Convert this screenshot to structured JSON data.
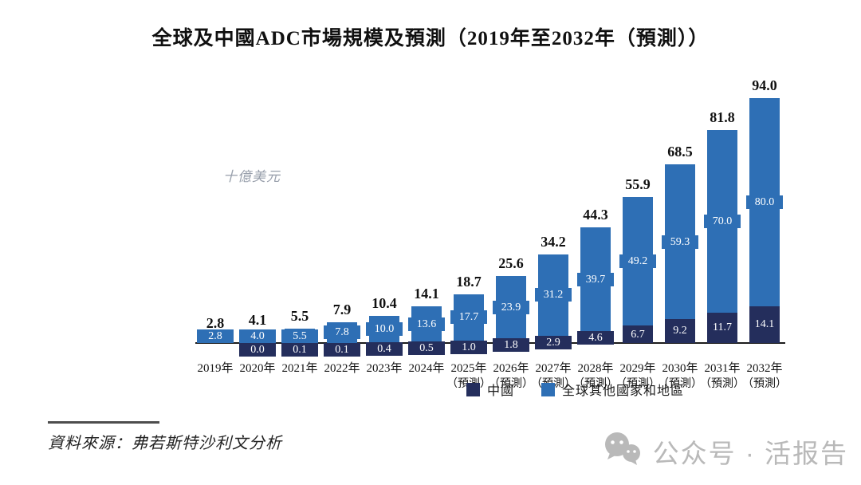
{
  "title": "全球及中國ADC市場規模及預測（2019年至2032年（預測））",
  "y_axis_label": "十億美元",
  "chart_data": {
    "type": "bar",
    "stacked": true,
    "title": "全球及中國ADC市場規模及預測（2019年至2032年（預測））",
    "ylabel": "十億美元",
    "ylim": [
      0,
      94
    ],
    "grid": false,
    "legend_position": "bottom",
    "categories": [
      "2019年",
      "2020年",
      "2021年",
      "2022年",
      "2023年",
      "2024年",
      "2025年",
      "2026年",
      "2027年",
      "2028年",
      "2029年",
      "2030年",
      "2031年",
      "2032年"
    ],
    "forecast_suffix": "（預測）",
    "forecast_from_index": 6,
    "series": [
      {
        "name": "中國",
        "color": "#242e5c",
        "values": [
          0,
          0.0,
          0.1,
          0.1,
          0.4,
          0.5,
          1.0,
          1.8,
          2.9,
          4.6,
          6.7,
          9.2,
          11.7,
          14.1
        ],
        "labels": [
          "",
          "0.0",
          "0.1",
          "0.1",
          "0.4",
          "0.5",
          "1.0",
          "1.8",
          "2.9",
          "4.6",
          "6.7",
          "9.2",
          "11.7",
          "14.1"
        ]
      },
      {
        "name": "全球其他國家和地區",
        "color": "#2e6fb5",
        "values": [
          2.8,
          4.0,
          5.5,
          7.8,
          10.0,
          13.6,
          17.7,
          23.9,
          31.2,
          39.7,
          49.2,
          59.3,
          70.0,
          80.0
        ],
        "labels": [
          "2.8",
          "4.0",
          "5.5",
          "7.8",
          "10.0",
          "13.6",
          "17.7",
          "23.9",
          "31.2",
          "39.7",
          "49.2",
          "59.3",
          "70.0",
          "80.0"
        ]
      }
    ],
    "totals": [
      "2.8",
      "4.1",
      "5.5",
      "7.9",
      "10.4",
      "14.1",
      "18.7",
      "25.6",
      "34.2",
      "44.3",
      "55.9",
      "68.5",
      "81.8",
      "94.0"
    ]
  },
  "legend": {
    "items": [
      {
        "label": "中國",
        "color": "#242e5c"
      },
      {
        "label": "全球其他國家和地區",
        "color": "#2e6fb5"
      }
    ]
  },
  "source": {
    "text": "資料來源：弗若斯特沙利文分析"
  },
  "watermark": {
    "icon": "wechat-icon",
    "text": "公众号 · 活报告"
  }
}
